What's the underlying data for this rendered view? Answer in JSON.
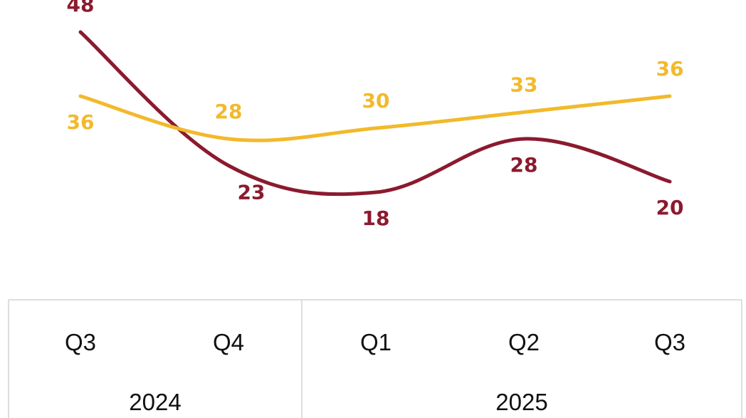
{
  "chart_data": {
    "type": "line",
    "title": "",
    "xlabel": "",
    "ylabel": "",
    "grid": false,
    "legend": "none",
    "categories": [
      "Q3",
      "Q4",
      "Q1",
      "Q2",
      "Q3"
    ],
    "category_groups": [
      {
        "label": "2024",
        "categories": [
          "Q3",
          "Q4"
        ]
      },
      {
        "label": "2025",
        "categories": [
          "Q1",
          "Q2",
          "Q3"
        ]
      }
    ],
    "ylim": [
      0,
      50
    ],
    "series": [
      {
        "values": [
          48,
          23,
          18,
          28,
          20
        ],
        "color": "#8b1a2e"
      },
      {
        "values": [
          36,
          28,
          30,
          33,
          36
        ],
        "color": "#f2b92b"
      }
    ]
  }
}
